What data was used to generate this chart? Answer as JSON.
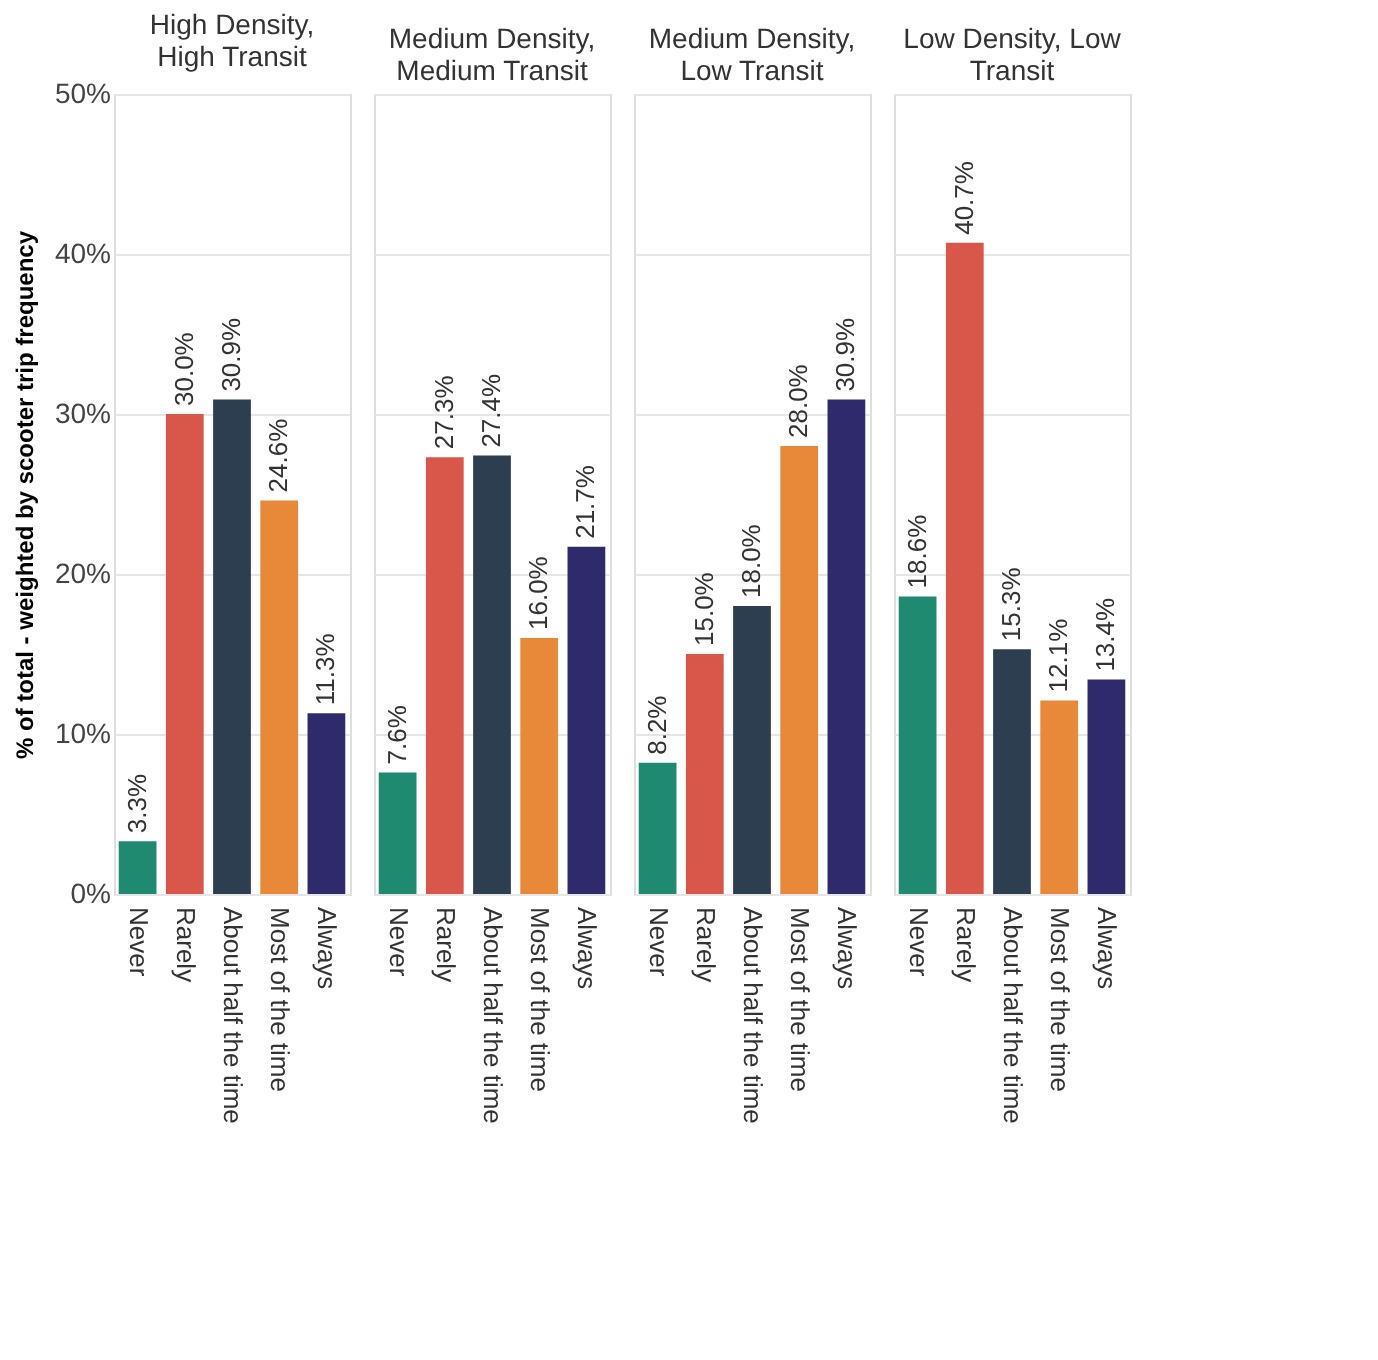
{
  "chart_data": [
    {
      "type": "bar",
      "title": "High Density, High Transit",
      "ylabel": "% of total - weighted by scooter trip frequency",
      "categories": [
        "Never",
        "Rarely",
        "About half the time",
        "Most of the time",
        "Always"
      ],
      "values": [
        3.3,
        30.0,
        30.9,
        24.6,
        11.3
      ],
      "value_labels": [
        "3.3%",
        "30.0%",
        "30.9%",
        "24.6%",
        "11.3%"
      ],
      "colors": [
        "#1f8a70",
        "#d9574a",
        "#2c3e50",
        "#e8893a",
        "#2f2a6b"
      ],
      "ylim": [
        0,
        50
      ],
      "yticks": [
        {
          "value": 0,
          "label": "0%"
        },
        {
          "value": 10,
          "label": "10%"
        },
        {
          "value": 20,
          "label": "20%"
        },
        {
          "value": 30,
          "label": "30%"
        },
        {
          "value": 40,
          "label": "40%"
        },
        {
          "value": 50,
          "label": "50%"
        }
      ],
      "grid": "y"
    },
    {
      "type": "bar",
      "title": "Medium Density, Medium Transit",
      "categories": [
        "Never",
        "Rarely",
        "About half the time",
        "Most of the time",
        "Always"
      ],
      "values": [
        7.6,
        27.3,
        27.4,
        16.0,
        21.7
      ],
      "value_labels": [
        "7.6%",
        "27.3%",
        "27.4%",
        "16.0%",
        "21.7%"
      ],
      "colors": [
        "#1f8a70",
        "#d9574a",
        "#2c3e50",
        "#e8893a",
        "#2f2a6b"
      ],
      "ylim": [
        0,
        50
      ],
      "yticks": [
        0,
        10,
        20,
        30,
        40,
        50
      ],
      "grid": "y",
      "tick_labels": "x"
    },
    {
      "type": "bar",
      "title": "Medium Density, Low Transit",
      "categories": [
        "Never",
        "Rarely",
        "About half the time",
        "Most of the time",
        "Always"
      ],
      "values": [
        8.2,
        15.0,
        18.0,
        28.0,
        30.9
      ],
      "value_labels": [
        "8.2%",
        "15.0%",
        "18.0%",
        "28.0%",
        "30.9%"
      ],
      "colors": [
        "#1f8a70",
        "#d9574a",
        "#2c3e50",
        "#e8893a",
        "#2f2a6b"
      ],
      "ylim": [
        0,
        50
      ],
      "yticks": [
        0,
        10,
        20,
        30,
        40,
        50
      ],
      "grid": "y",
      "tick_labels": "x"
    },
    {
      "type": "bar",
      "title": "Low Density, Low Transit",
      "categories": [
        "Never",
        "Rarely",
        "About half the time",
        "Most of the time",
        "Always"
      ],
      "values": [
        18.6,
        40.7,
        15.3,
        12.1,
        13.4
      ],
      "value_labels": [
        "18.6%",
        "40.7%",
        "15.3%",
        "12.1%",
        "13.4%"
      ],
      "colors": [
        "#1f8a70",
        "#d9574a",
        "#2c3e50",
        "#e8893a",
        "#2f2a6b"
      ],
      "ylim": [
        0,
        50
      ],
      "yticks": [
        0,
        10,
        20,
        30,
        40,
        50
      ],
      "grid": "y",
      "tick_labels": "x"
    }
  ]
}
